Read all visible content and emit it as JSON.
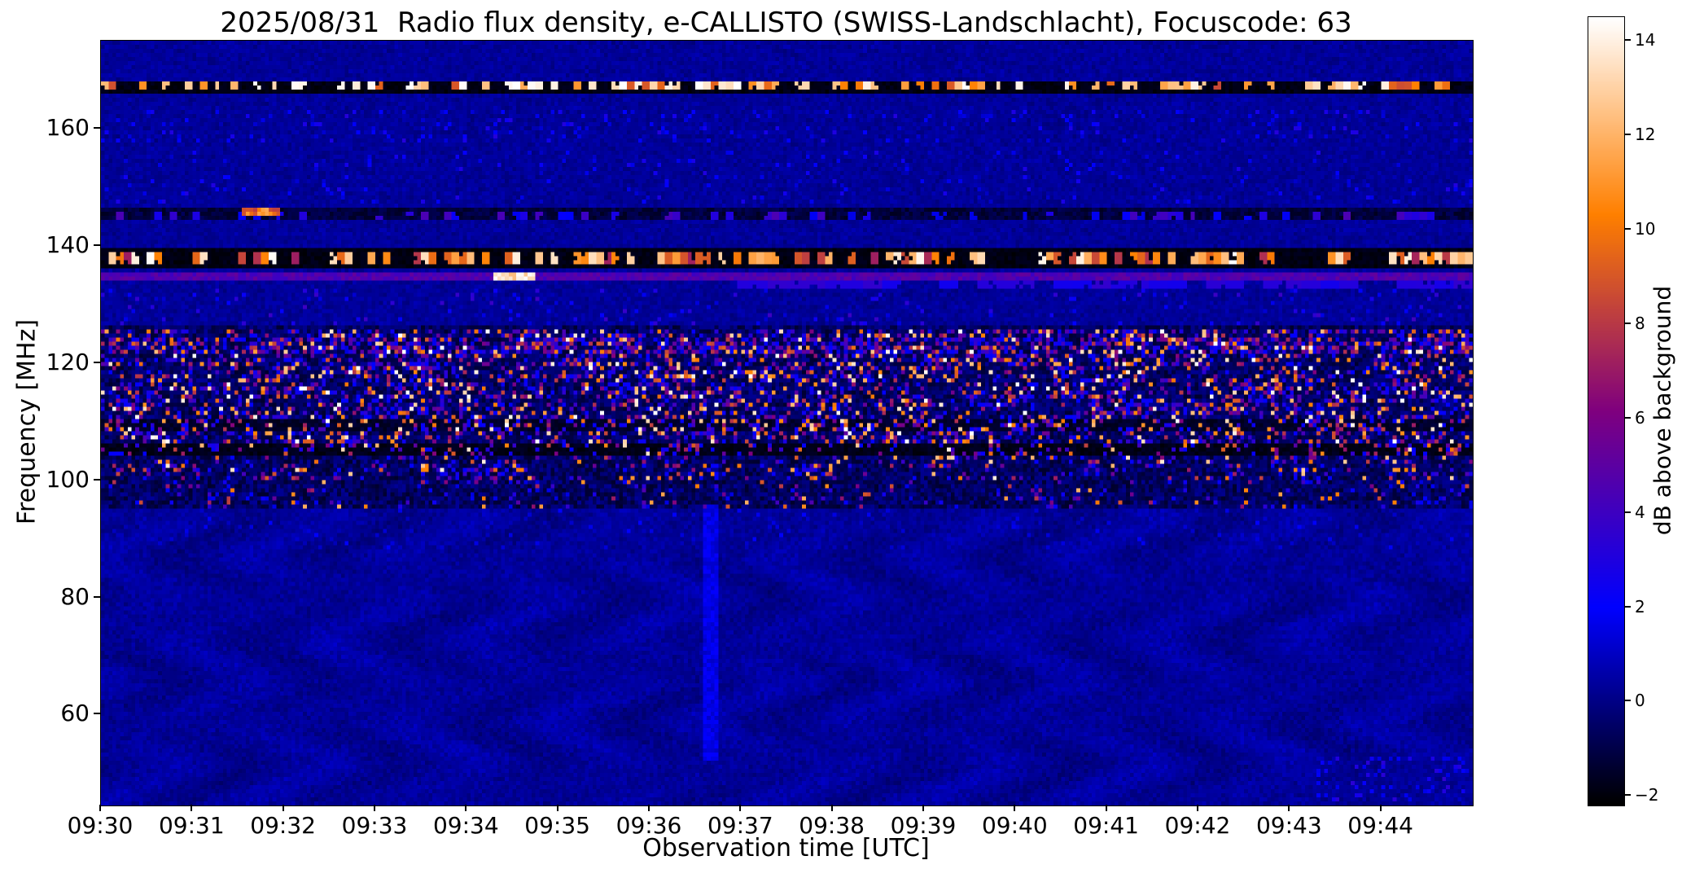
{
  "figure": {
    "title": "2025/08/31  Radio flux density, e-CALLISTO (SWISS-Landschlacht), Focuscode: 63"
  },
  "chart_data": {
    "type": "heatmap",
    "title": "2025/08/31  Radio flux density, e-CALLISTO (SWISS-Landschlacht), Focuscode: 63",
    "xlabel": "Observation time [UTC]",
    "ylabel": "Frequency [MHz]",
    "colorbar_label": "dB above background",
    "colormap": "gnuplot2",
    "x_start_utc": "09:30",
    "x_end_utc": "09:45",
    "x_tick_labels": [
      "09:30",
      "09:31",
      "09:32",
      "09:33",
      "09:34",
      "09:35",
      "09:36",
      "09:37",
      "09:38",
      "09:39",
      "09:40",
      "09:41",
      "09:42",
      "09:43",
      "09:44"
    ],
    "x_tick_minutes": [
      0,
      1,
      2,
      3,
      4,
      5,
      6,
      7,
      8,
      9,
      10,
      11,
      12,
      13,
      14
    ],
    "x_span_minutes": [
      0,
      15
    ],
    "y_tick_labels": [
      "160",
      "140",
      "120",
      "100",
      "80",
      "60"
    ],
    "y_ticks_mhz": [
      160,
      140,
      120,
      100,
      80,
      60
    ],
    "freq_range_mhz": [
      44.5,
      175
    ],
    "colorbar_tick_labels": [
      "−2",
      "0",
      "2",
      "4",
      "6",
      "8",
      "10",
      "12",
      "14"
    ],
    "colorbar_ticks_db": [
      -2,
      0,
      2,
      4,
      6,
      8,
      10,
      12,
      14
    ],
    "value_range_db": [
      -2.2,
      14.5
    ],
    "background_level_db": 0.3,
    "render_grid": {
      "cols": 360,
      "rows": 188
    },
    "seed": 63,
    "features": [
      {
        "name": "ripple-low-freq",
        "kind": "ripple",
        "f_range": [
          44.5,
          95
        ],
        "amp_db": 0.35
      },
      {
        "name": "speckle-88-95",
        "kind": "speckle",
        "f_range": [
          88,
          95
        ],
        "density": 0.04,
        "value_range_db": [
          0.8,
          2.0
        ]
      },
      {
        "name": "calibration-band-dark",
        "kind": "base",
        "f_range": [
          165.9,
          168.4
        ],
        "level_db": -1.9,
        "noise": 0.25
      },
      {
        "name": "calibration-blobs",
        "kind": "dashes",
        "f_range": [
          166.6,
          168.0
        ],
        "density": 0.45,
        "value_range_db": [
          8.5,
          15
        ],
        "chunk_cols": 2,
        "power": 0.9
      },
      {
        "name": "speckle-157-163",
        "kind": "speckle",
        "f_range": [
          157.5,
          163
        ],
        "density": 0.07,
        "value_range_db": [
          1.2,
          3.2
        ]
      },
      {
        "name": "speckle-148-156",
        "kind": "speckle",
        "f_range": [
          147.5,
          156.5
        ],
        "density": 0.05,
        "value_range_db": [
          1.0,
          3.0
        ]
      },
      {
        "name": "band-145-dark",
        "kind": "base",
        "f_range": [
          144.4,
          146.2
        ],
        "level_db": -1.2,
        "noise": 0.5
      },
      {
        "name": "band-145-dashes",
        "kind": "dashes",
        "f_range": [
          144.8,
          145.9
        ],
        "density": 0.3,
        "value_range_db": [
          1.5,
          4.5
        ],
        "chunk_cols": 2
      },
      {
        "name": "band-145-orange-blob",
        "kind": "patch",
        "f_range": [
          144.9,
          146.2
        ],
        "t_range": [
          1.55,
          1.95
        ],
        "value_range_db": [
          8,
          12
        ]
      },
      {
        "name": "band-137-dark",
        "kind": "base",
        "f_range": [
          135.9,
          139.3
        ],
        "level_db": -1.9,
        "noise": 0.25
      },
      {
        "name": "band-137-dashes",
        "kind": "dashes",
        "f_range": [
          136.7,
          138.6
        ],
        "density": 0.55,
        "value_range_db": [
          7,
          14.5
        ],
        "chunk_cols": 2,
        "power": 1.0
      },
      {
        "name": "hline-134-7",
        "kind": "hline",
        "f_range": [
          134.15,
          135.3
        ],
        "level_db": 4.6,
        "noise": 0.7
      },
      {
        "name": "hline-bright-segment",
        "kind": "patch",
        "f_range": [
          134.0,
          135.4
        ],
        "t_range": [
          4.3,
          4.75
        ],
        "value_range_db": [
          12,
          15
        ]
      },
      {
        "name": "band-133-lavender",
        "kind": "dashes",
        "f_range": [
          132.9,
          134.05
        ],
        "t_range": [
          6.95,
          15
        ],
        "density": 0.75,
        "value_range_db": [
          2.5,
          3.6
        ],
        "chunk_cols": 5
      },
      {
        "name": "speckle-127-133",
        "kind": "speckle",
        "f_range": [
          126.5,
          133
        ],
        "density": 0.06,
        "value_range_db": [
          1.2,
          4.0
        ]
      },
      {
        "name": "main-band-base",
        "kind": "base",
        "f_range": [
          95.5,
          126.5
        ],
        "level_db": -0.6,
        "noise": 0.9
      },
      {
        "name": "dark-lane-105",
        "kind": "base",
        "f_range": [
          104.3,
          106.6
        ],
        "level_db": -1.8,
        "noise": 0.3
      },
      {
        "name": "dark-lane-109",
        "kind": "base",
        "f_range": [
          108.6,
          110.2
        ],
        "level_db": -1.5,
        "noise": 0.35
      },
      {
        "name": "main-speckle-dense",
        "kind": "speckle",
        "f_range": [
          106,
          126
        ],
        "density": 0.3,
        "value_range_db": [
          2,
          15
        ],
        "power": 2.0,
        "clustered": true
      },
      {
        "name": "main-speckle-mid",
        "kind": "speckle",
        "f_range": [
          100,
          106
        ],
        "density": 0.17,
        "value_range_db": [
          2,
          14
        ],
        "power": 2.2,
        "clustered": true
      },
      {
        "name": "main-speckle-low",
        "kind": "speckle",
        "f_range": [
          95.5,
          100
        ],
        "density": 0.09,
        "value_range_db": [
          1.5,
          12
        ],
        "power": 2.4,
        "clustered": true
      },
      {
        "name": "edge-row-122",
        "kind": "speckle",
        "f_range": [
          121.6,
          124.3
        ],
        "density": 0.38,
        "value_range_db": [
          1.5,
          9
        ],
        "power": 1.8
      },
      {
        "name": "vline-0936-7",
        "kind": "vline",
        "t_range": [
          6.6,
          6.73
        ],
        "f_range": [
          52,
          96
        ],
        "value_range_db": [
          1.0,
          2.2
        ]
      },
      {
        "name": "bottom-right-speckle",
        "kind": "speckle",
        "f_range": [
          45.5,
          53
        ],
        "t_range": [
          13.3,
          15
        ],
        "density": 0.15,
        "value_range_db": [
          1.5,
          3.5
        ]
      }
    ]
  }
}
